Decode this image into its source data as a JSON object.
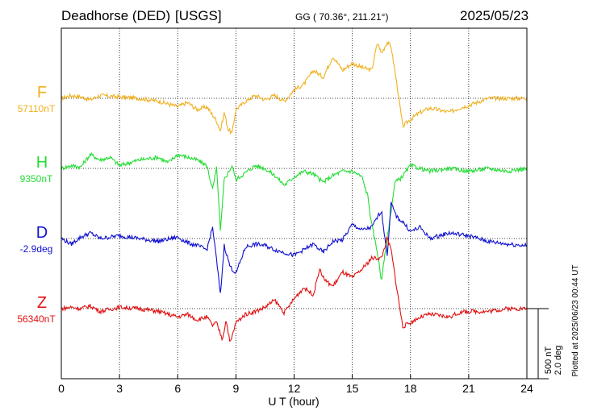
{
  "header": {
    "station": "Deadhorse (DED)",
    "source": "[USGS]",
    "coords": "GG ( 70.36°, 211.21°)",
    "date": "2025/05/23"
  },
  "scale": {
    "nt": "500 nT",
    "deg": "2.0 deg"
  },
  "plotted": "Plotted at 2025/06/23 00:44 UT",
  "chart_data": {
    "type": "line",
    "xlabel": "U T (hour)",
    "xlim": [
      0,
      24
    ],
    "xticks": [
      "0",
      "3",
      "6",
      "9",
      "12",
      "15",
      "18",
      "21",
      "24"
    ],
    "grid": true,
    "colors": {
      "F": "#f0b020",
      "H": "#22dd33",
      "D": "#1010d0",
      "Z": "#e01010"
    },
    "series": [
      {
        "name": "F",
        "baseline_label": "57110nT",
        "values": [
          [
            0,
            0
          ],
          [
            0.5,
            20
          ],
          [
            1,
            10
          ],
          [
            1.5,
            -10
          ],
          [
            2,
            20
          ],
          [
            3,
            10
          ],
          [
            4,
            0
          ],
          [
            5,
            -20
          ],
          [
            5.5,
            -40
          ],
          [
            6,
            -60
          ],
          [
            6.5,
            -30
          ],
          [
            7,
            -80
          ],
          [
            7.5,
            -60
          ],
          [
            8,
            -160
          ],
          [
            8.2,
            -230
          ],
          [
            8.4,
            -100
          ],
          [
            8.6,
            -220
          ],
          [
            8.8,
            -250
          ],
          [
            9,
            -80
          ],
          [
            9.5,
            -20
          ],
          [
            10,
            20
          ],
          [
            10.5,
            -10
          ],
          [
            11,
            20
          ],
          [
            11.5,
            -20
          ],
          [
            12,
            60
          ],
          [
            12.5,
            100
          ],
          [
            13,
            200
          ],
          [
            13.5,
            150
          ],
          [
            14,
            300
          ],
          [
            14.5,
            200
          ],
          [
            15,
            250
          ],
          [
            15.5,
            220
          ],
          [
            16,
            200
          ],
          [
            16.3,
            400
          ],
          [
            16.5,
            320
          ],
          [
            16.8,
            400
          ],
          [
            17,
            370
          ],
          [
            17.3,
            100
          ],
          [
            17.6,
            -200
          ],
          [
            18,
            -150
          ],
          [
            18.5,
            -100
          ],
          [
            19,
            -70
          ],
          [
            20,
            -100
          ],
          [
            20.5,
            -70
          ],
          [
            21,
            -50
          ],
          [
            22,
            0
          ],
          [
            23,
            0
          ],
          [
            24,
            0
          ]
        ]
      },
      {
        "name": "H",
        "baseline_label": "9350nT",
        "values": [
          [
            0,
            0
          ],
          [
            0.5,
            20
          ],
          [
            1,
            10
          ],
          [
            1.5,
            100
          ],
          [
            2,
            60
          ],
          [
            2.5,
            80
          ],
          [
            3,
            20
          ],
          [
            3.5,
            40
          ],
          [
            4,
            60
          ],
          [
            5,
            80
          ],
          [
            5.5,
            40
          ],
          [
            6,
            100
          ],
          [
            6.5,
            80
          ],
          [
            7,
            60
          ],
          [
            7.5,
            20
          ],
          [
            7.8,
            -150
          ],
          [
            8,
            0
          ],
          [
            8.1,
            -200
          ],
          [
            8.2,
            -450
          ],
          [
            8.4,
            -80
          ],
          [
            8.8,
            20
          ],
          [
            9,
            -80
          ],
          [
            9.5,
            -30
          ],
          [
            10,
            20
          ],
          [
            10.5,
            0
          ],
          [
            11,
            -50
          ],
          [
            11.5,
            -120
          ],
          [
            12,
            -60
          ],
          [
            12.5,
            -20
          ],
          [
            13,
            -40
          ],
          [
            13.5,
            -100
          ],
          [
            14,
            -50
          ],
          [
            14.5,
            -20
          ],
          [
            15,
            -20
          ],
          [
            15.5,
            -60
          ],
          [
            15.8,
            -200
          ],
          [
            16,
            -400
          ],
          [
            16.3,
            -600
          ],
          [
            16.5,
            -800
          ],
          [
            16.7,
            -600
          ],
          [
            17,
            -300
          ],
          [
            17.2,
            -100
          ],
          [
            17.5,
            -70
          ],
          [
            18,
            20
          ],
          [
            18.5,
            0
          ],
          [
            19,
            -20
          ],
          [
            20,
            0
          ],
          [
            21,
            -20
          ],
          [
            22,
            0
          ],
          [
            23,
            -20
          ],
          [
            24,
            0
          ]
        ]
      },
      {
        "name": "D",
        "baseline_label": "-2.9deg",
        "values": [
          [
            0,
            0
          ],
          [
            0.5,
            -40
          ],
          [
            1,
            10
          ],
          [
            1.5,
            40
          ],
          [
            2,
            0
          ],
          [
            3,
            20
          ],
          [
            4,
            0
          ],
          [
            5,
            -20
          ],
          [
            6,
            10
          ],
          [
            6.5,
            -30
          ],
          [
            7,
            -50
          ],
          [
            7.5,
            -80
          ],
          [
            7.8,
            80
          ],
          [
            8,
            -150
          ],
          [
            8.2,
            -400
          ],
          [
            8.4,
            -50
          ],
          [
            8.7,
            -200
          ],
          [
            9,
            -250
          ],
          [
            9.5,
            -60
          ],
          [
            10,
            -40
          ],
          [
            10.5,
            -50
          ],
          [
            11,
            -80
          ],
          [
            11.5,
            -100
          ],
          [
            12,
            -120
          ],
          [
            12.5,
            -80
          ],
          [
            13,
            -40
          ],
          [
            13.5,
            -100
          ],
          [
            14,
            -20
          ],
          [
            14.5,
            -10
          ],
          [
            15,
            100
          ],
          [
            15.5,
            60
          ],
          [
            16,
            80
          ],
          [
            16.5,
            200
          ],
          [
            16.8,
            -120
          ],
          [
            17,
            250
          ],
          [
            17.3,
            150
          ],
          [
            17.6,
            120
          ],
          [
            18,
            50
          ],
          [
            18.5,
            80
          ],
          [
            19,
            0
          ],
          [
            20,
            40
          ],
          [
            21,
            20
          ],
          [
            22,
            -20
          ],
          [
            23,
            -40
          ],
          [
            24,
            -50
          ]
        ]
      },
      {
        "name": "Z",
        "baseline_label": "56340nT",
        "values": [
          [
            0,
            0
          ],
          [
            0.5,
            10
          ],
          [
            1,
            0
          ],
          [
            1.5,
            20
          ],
          [
            2,
            -20
          ],
          [
            3,
            10
          ],
          [
            4,
            0
          ],
          [
            5,
            -20
          ],
          [
            5.5,
            -40
          ],
          [
            6,
            -60
          ],
          [
            6.5,
            -40
          ],
          [
            7,
            -80
          ],
          [
            7.5,
            -60
          ],
          [
            7.8,
            -120
          ],
          [
            8,
            -100
          ],
          [
            8.3,
            -220
          ],
          [
            8.5,
            -80
          ],
          [
            8.7,
            -250
          ],
          [
            9,
            -100
          ],
          [
            9.5,
            -40
          ],
          [
            10,
            -20
          ],
          [
            10.5,
            10
          ],
          [
            11,
            60
          ],
          [
            11.5,
            -30
          ],
          [
            12,
            70
          ],
          [
            12.5,
            150
          ],
          [
            13,
            100
          ],
          [
            13.3,
            280
          ],
          [
            13.6,
            200
          ],
          [
            14,
            160
          ],
          [
            14.5,
            260
          ],
          [
            15,
            220
          ],
          [
            15.5,
            280
          ],
          [
            16,
            360
          ],
          [
            16.5,
            360
          ],
          [
            16.8,
            500
          ],
          [
            17,
            420
          ],
          [
            17.3,
            140
          ],
          [
            17.6,
            -130
          ],
          [
            18,
            -100
          ],
          [
            18.5,
            -60
          ],
          [
            19,
            -40
          ],
          [
            20,
            -60
          ],
          [
            20.5,
            -30
          ],
          [
            21,
            -20
          ],
          [
            22,
            -20
          ],
          [
            23,
            0
          ],
          [
            24,
            0
          ]
        ]
      }
    ]
  }
}
